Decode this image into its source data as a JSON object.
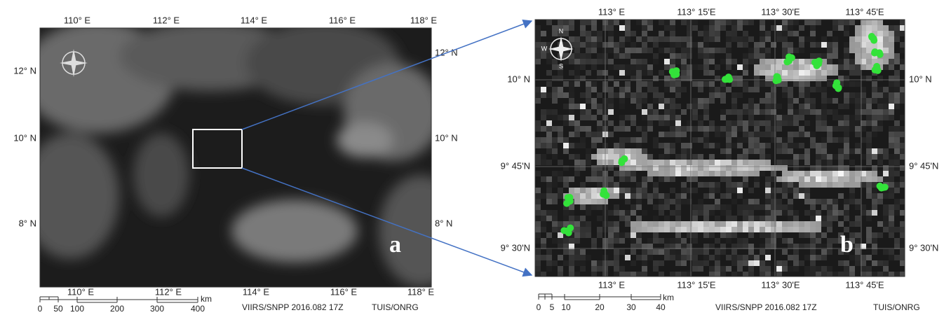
{
  "panel_a": {
    "letter": "a",
    "top_labels": [
      "110° E",
      "112° E",
      "114° E",
      "116° E",
      "118° E"
    ],
    "bottom_labels": [
      "110° E",
      "112° E",
      "114° E",
      "116° E",
      "118° E"
    ],
    "left_labels": [
      "12° N",
      "10° N",
      "8° N"
    ],
    "right_labels": [
      "12° N",
      "10° N",
      "8° N"
    ],
    "scale": {
      "ticks": [
        "0",
        "50",
        "100",
        "200",
        "300",
        "400"
      ],
      "unit": "km"
    },
    "source": "VIIRS/SNPP 2016.082 17Z",
    "credit": "TUIS/ONRG"
  },
  "panel_b": {
    "letter": "b",
    "top_labels": [
      "113° E",
      "113° 15'E",
      "113° 30'E",
      "113° 45'E"
    ],
    "bottom_labels": [
      "113° E",
      "113° 15'E",
      "113° 30'E",
      "113° 45'E"
    ],
    "left_labels": [
      "10° N",
      "9° 45'N",
      "9° 30'N"
    ],
    "right_labels": [
      "10° N",
      "9° 45'N",
      "9° 30'N"
    ],
    "compass": {
      "north": "N",
      "south": "S",
      "west": "W"
    },
    "scale": {
      "ticks": [
        "0",
        "5",
        "10",
        "20",
        "30",
        "40"
      ],
      "unit": "km"
    },
    "source": "VIIRS/SNPP 2016.082 17Z",
    "credit": "TUIS/ONRG"
  }
}
